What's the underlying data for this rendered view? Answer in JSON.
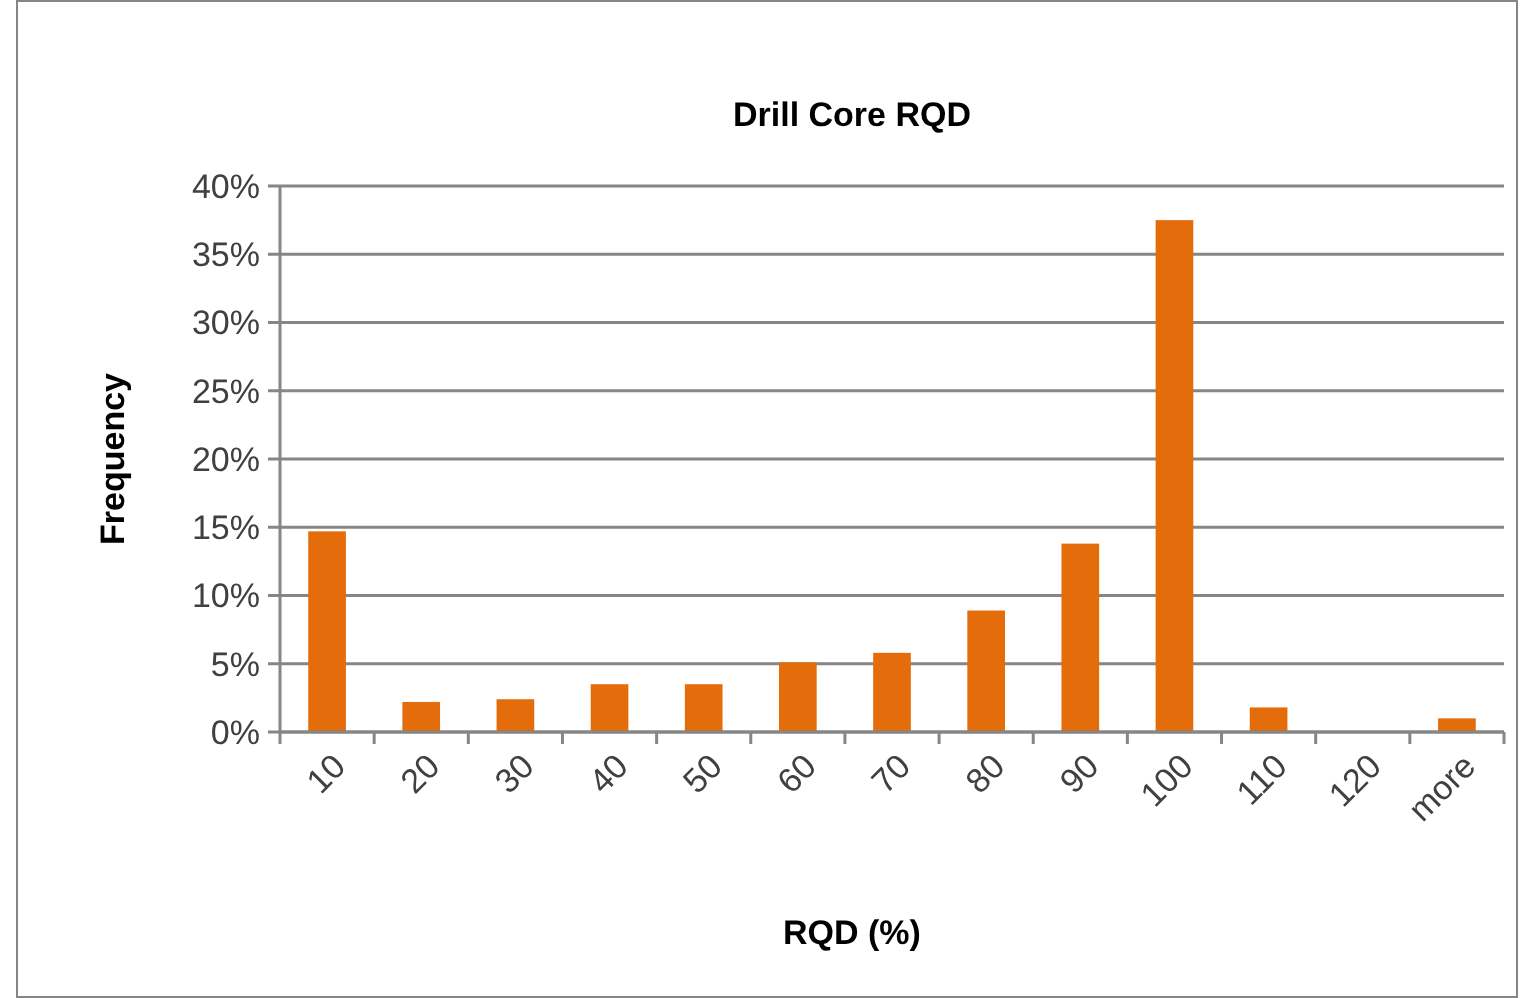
{
  "chart_data": {
    "type": "bar",
    "title": "Drill Core RQD",
    "xlabel": "RQD (%)",
    "ylabel": "Frequency",
    "categories": [
      "10",
      "20",
      "30",
      "40",
      "50",
      "60",
      "70",
      "80",
      "90",
      "100",
      "110",
      "120",
      "more"
    ],
    "values": [
      14.7,
      2.2,
      2.4,
      3.5,
      3.5,
      5.1,
      5.8,
      8.9,
      13.8,
      37.5,
      1.8,
      0,
      1.0
    ],
    "color": "#e46c0a",
    "ylim": [
      0,
      40
    ],
    "yticks": [
      {
        "value": 0,
        "label": "0%"
      },
      {
        "value": 5,
        "label": "5%"
      },
      {
        "value": 10,
        "label": "10%"
      },
      {
        "value": 15,
        "label": "15%"
      },
      {
        "value": 20,
        "label": "20%"
      },
      {
        "value": 25,
        "label": "25%"
      },
      {
        "value": 30,
        "label": "30%"
      },
      {
        "value": 35,
        "label": "35%"
      },
      {
        "value": 40,
        "label": "40%"
      }
    ],
    "grid": "y"
  }
}
